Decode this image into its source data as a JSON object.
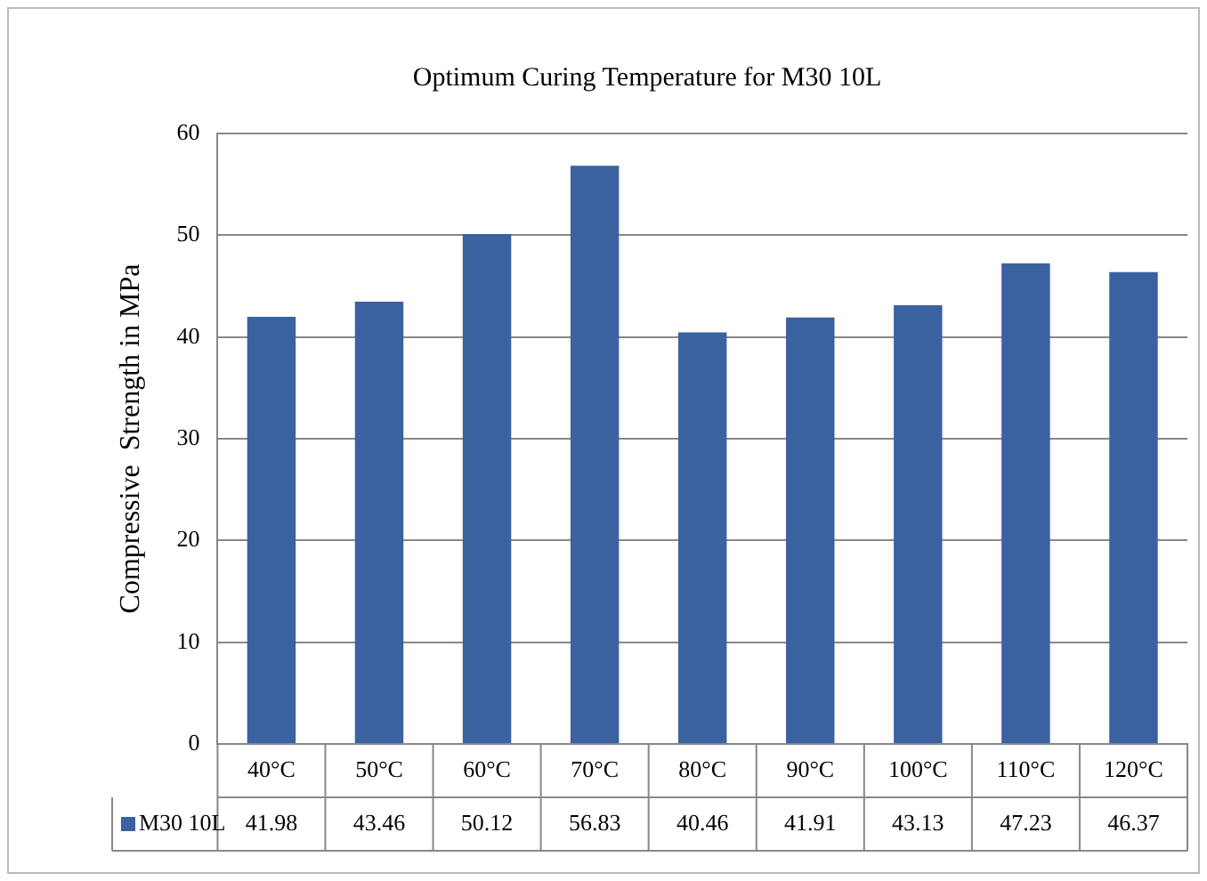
{
  "chart_data": {
    "type": "bar",
    "title": "Optimum Curing Temperature for M30 10L",
    "ylabel": "Compressive  Strength in MPa",
    "categories": [
      "40°C",
      "50°C",
      "60°C",
      "70°C",
      "80°C",
      "90°C",
      "100°C",
      "110°C",
      "120°C"
    ],
    "series": [
      {
        "name": "M30 10L",
        "color": "#3b62a0",
        "values": [
          41.98,
          43.46,
          50.12,
          56.83,
          40.46,
          41.91,
          43.13,
          47.23,
          46.37
        ]
      }
    ],
    "ylim": [
      0,
      60
    ],
    "yticks": [
      0,
      10,
      20,
      30,
      40,
      50,
      60
    ],
    "grid": "y",
    "legend": "bottom",
    "data_labels": true
  }
}
